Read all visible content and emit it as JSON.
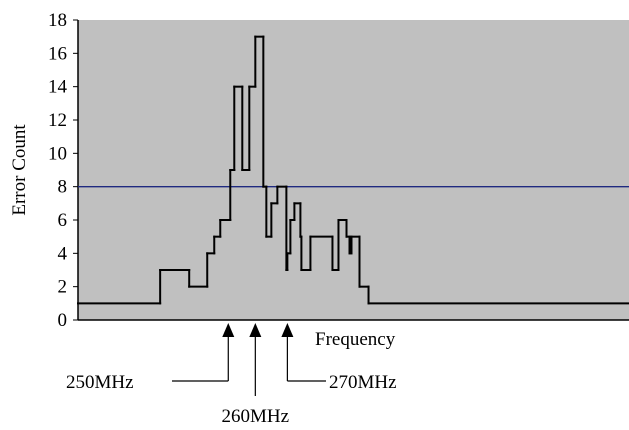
{
  "chart_data": {
    "type": "line",
    "title": "",
    "xlabel": "Frequency",
    "ylabel": "Error Count",
    "ylim": [
      0,
      18
    ],
    "yticks": [
      0,
      2,
      4,
      6,
      8,
      10,
      12,
      14,
      16,
      18
    ],
    "grid": false,
    "legend": "none",
    "plot_background": "#c0c0c0",
    "series_color": "#000000",
    "threshold_color": "#1f2a80",
    "series": [
      {
        "values": [
          [
            0,
            1
          ],
          [
            82,
            1
          ],
          [
            82,
            3
          ],
          [
            111,
            3
          ],
          [
            111,
            2
          ],
          [
            129,
            2
          ],
          [
            129,
            4
          ],
          [
            136,
            4
          ],
          [
            136,
            5
          ],
          [
            142,
            5
          ],
          [
            142,
            6
          ],
          [
            152,
            6
          ],
          [
            152,
            9
          ],
          [
            156,
            9
          ],
          [
            156,
            14
          ],
          [
            164,
            14
          ],
          [
            164,
            9
          ],
          [
            171,
            9
          ],
          [
            171,
            14
          ],
          [
            177,
            14
          ],
          [
            177,
            17
          ],
          [
            185,
            17
          ],
          [
            185,
            8
          ],
          [
            188,
            8
          ],
          [
            188,
            5
          ],
          [
            193,
            5
          ],
          [
            193,
            7
          ],
          [
            199,
            7
          ],
          [
            199,
            8
          ],
          [
            208,
            8
          ],
          [
            208,
            3
          ],
          [
            209,
            3
          ],
          [
            209,
            4
          ],
          [
            212,
            4
          ],
          [
            212,
            6
          ],
          [
            216,
            6
          ],
          [
            216,
            7
          ],
          [
            222,
            7
          ],
          [
            222,
            5
          ],
          [
            223,
            5
          ],
          [
            223,
            3
          ],
          [
            232,
            3
          ],
          [
            232,
            5
          ],
          [
            254,
            5
          ],
          [
            254,
            3
          ],
          [
            260,
            3
          ],
          [
            260,
            6
          ],
          [
            268,
            6
          ],
          [
            268,
            5
          ],
          [
            271,
            5
          ],
          [
            271,
            4
          ],
          [
            273,
            4
          ],
          [
            273,
            5
          ],
          [
            281,
            5
          ],
          [
            281,
            2
          ],
          [
            290,
            2
          ],
          [
            290,
            1
          ],
          [
            550,
            1
          ]
        ]
      }
    ],
    "threshold": 8,
    "annotations": [
      {
        "label": "250MHz",
        "x": 150
      },
      {
        "label": "260MHz",
        "x": 177
      },
      {
        "label": "270MHz",
        "x": 209
      }
    ]
  }
}
